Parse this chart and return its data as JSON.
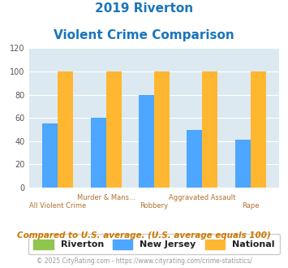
{
  "title_line1": "2019 Riverton",
  "title_line2": "Violent Crime Comparison",
  "categories": [
    "All Violent Crime",
    "Murder & Mans...",
    "Robbery",
    "Aggravated Assault",
    "Rape"
  ],
  "cat_labels_row1": [
    "",
    "Murder & Mans...",
    "",
    "Aggravated Assault",
    ""
  ],
  "cat_labels_row2": [
    "All Violent Crime",
    "",
    "Robbery",
    "",
    "Rape"
  ],
  "riverton_values": [
    0,
    0,
    0,
    0,
    0
  ],
  "nj_values": [
    55,
    60,
    80,
    50,
    41
  ],
  "national_values": [
    100,
    100,
    100,
    100,
    100
  ],
  "riverton_color": "#90c54e",
  "nj_color": "#4da6ff",
  "national_color": "#ffb732",
  "ylim": [
    0,
    120
  ],
  "yticks": [
    0,
    20,
    40,
    60,
    80,
    100,
    120
  ],
  "plot_bg_color": "#dce9f0",
  "title_color": "#1a75bb",
  "axis_label_color": "#b07030",
  "footnote1": "Compared to U.S. average. (U.S. average equals 100)",
  "footnote2": "© 2025 CityRating.com - https://www.cityrating.com/crime-statistics/",
  "legend_labels": [
    "Riverton",
    "New Jersey",
    "National"
  ],
  "bar_width": 0.32
}
